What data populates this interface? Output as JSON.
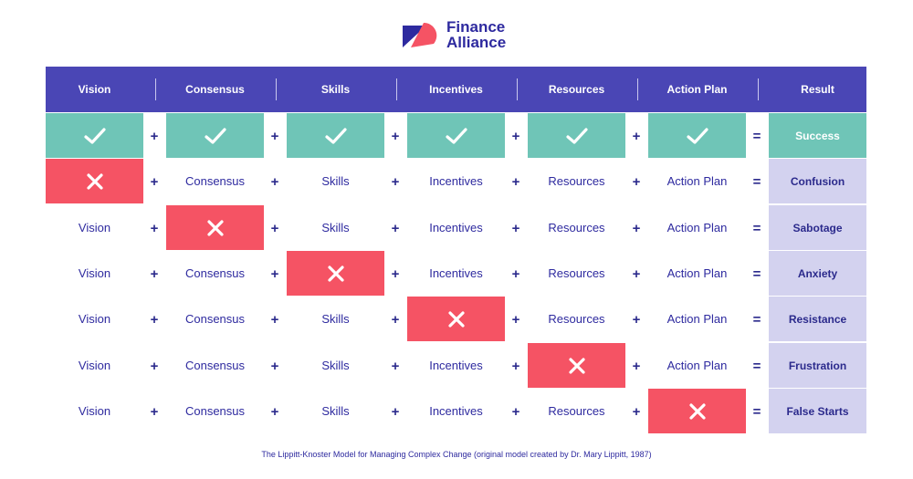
{
  "brand": {
    "line1": "Finance",
    "line2": "Alliance",
    "logo_icon": "finance-alliance-logo-icon"
  },
  "columns": [
    "Vision",
    "Consensus",
    "Skills",
    "Incentives",
    "Resources",
    "Action Plan",
    "Result"
  ],
  "operators": {
    "plus": "+",
    "equals": "="
  },
  "rows": [
    {
      "cells": [
        "check",
        "check",
        "check",
        "check",
        "check",
        "check"
      ],
      "result": "Success"
    },
    {
      "cells": [
        "cross",
        "Consensus",
        "Skills",
        "Incentives",
        "Resources",
        "Action Plan"
      ],
      "result": "Confusion"
    },
    {
      "cells": [
        "Vision",
        "cross",
        "Skills",
        "Incentives",
        "Resources",
        "Action Plan"
      ],
      "result": "Sabotage"
    },
    {
      "cells": [
        "Vision",
        "Consensus",
        "cross",
        "Incentives",
        "Resources",
        "Action Plan"
      ],
      "result": "Anxiety"
    },
    {
      "cells": [
        "Vision",
        "Consensus",
        "Skills",
        "cross",
        "Resources",
        "Action Plan"
      ],
      "result": "Resistance"
    },
    {
      "cells": [
        "Vision",
        "Consensus",
        "Skills",
        "Incentives",
        "cross",
        "Action Plan"
      ],
      "result": "Frustration"
    },
    {
      "cells": [
        "Vision",
        "Consensus",
        "Skills",
        "Incentives",
        "Resources",
        "cross"
      ],
      "result": "False Starts"
    }
  ],
  "colors": {
    "header": "#4a46b5",
    "check_bg": "#6fc5b7",
    "cross_bg": "#f55364",
    "result_bg": "#d3d2ef",
    "text": "#2e2a9f"
  },
  "caption": "The Lippitt-Knoster Model for Managing Complex Change (original model created by Dr. Mary Lippitt, 1987)"
}
